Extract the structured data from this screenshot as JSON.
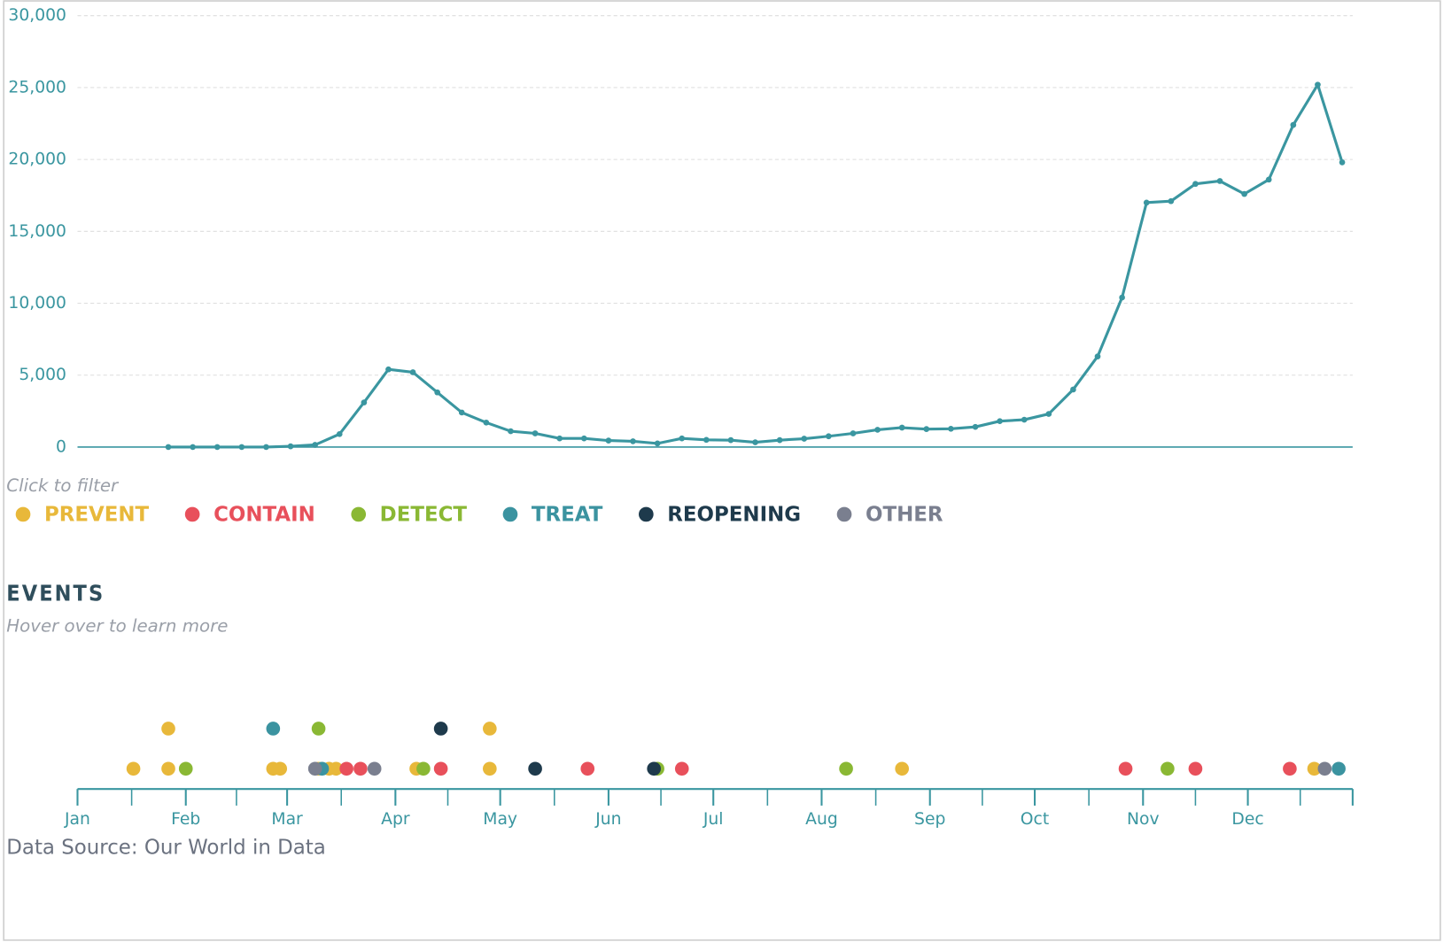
{
  "chart_data": [
    {
      "type": "line",
      "color": "#3a96a0",
      "grid": true,
      "values": [
        0,
        0,
        0,
        0,
        0,
        50,
        150,
        900,
        3100,
        5400,
        5200,
        3800,
        2400,
        1700,
        1100,
        950,
        600,
        600,
        450,
        400,
        250,
        600,
        500,
        480,
        330,
        480,
        580,
        750,
        950,
        1200,
        1350,
        1250,
        1270,
        1400,
        1800,
        1900,
        2300,
        4000,
        6300,
        10400,
        17000,
        17100,
        18300,
        18500,
        17600,
        18600,
        22400,
        25200,
        19800
      ],
      "ylim": [
        0,
        30000
      ],
      "yticks": [
        0,
        {
          "value": 5000,
          "label": "5,000"
        },
        {
          "value": 10000,
          "label": "10,000"
        },
        {
          "value": 15000,
          "label": "15,000"
        },
        {
          "value": 20000,
          "label": "20,000"
        },
        {
          "value": 25000,
          "label": "25,000"
        },
        {
          "value": 30000,
          "label": "30,000"
        }
      ]
    },
    {
      "type": "timeline",
      "title": "EVENTS",
      "subtitle": "Hover over to learn more",
      "legend_hint": "Click to filter",
      "source": "Data Source: Our World in Data",
      "xlim": [
        0,
        365
      ],
      "xticks": [
        {
          "value": 0,
          "label": "Jan"
        },
        {
          "value": 31,
          "label": "Feb"
        },
        {
          "value": 60,
          "label": "Mar"
        },
        {
          "value": 91,
          "label": "Apr"
        },
        {
          "value": 121,
          "label": "May"
        },
        {
          "value": 152,
          "label": "Jun"
        },
        {
          "value": 182,
          "label": "Jul"
        },
        {
          "value": 213,
          "label": "Aug"
        },
        {
          "value": 244,
          "label": "Sep"
        },
        {
          "value": 274,
          "label": "Oct"
        },
        {
          "value": 305,
          "label": "Nov"
        },
        {
          "value": 335,
          "label": "Dec"
        }
      ],
      "series": [
        {
          "name": "PREVENT",
          "color": "#e8b83a",
          "x": [
            16,
            26,
            26,
            56,
            58,
            69,
            72,
            74,
            97,
            118,
            118,
            236,
            354
          ]
        },
        {
          "name": "CONTAIN",
          "color": "#e8505b",
          "x": [
            77,
            81,
            104,
            146,
            173,
            300,
            320,
            347
          ]
        },
        {
          "name": "DETECT",
          "color": "#8ab834",
          "x": [
            31,
            69,
            99,
            166,
            220,
            312
          ]
        },
        {
          "name": "TREAT",
          "color": "#3b93a0",
          "x": [
            56,
            70,
            361
          ]
        },
        {
          "name": "REOPENING",
          "color": "#1e3a4c",
          "x": [
            104,
            131,
            165
          ]
        },
        {
          "name": "OTHER",
          "color": "#7a7f8f",
          "x": [
            68,
            85,
            357
          ]
        }
      ]
    }
  ]
}
